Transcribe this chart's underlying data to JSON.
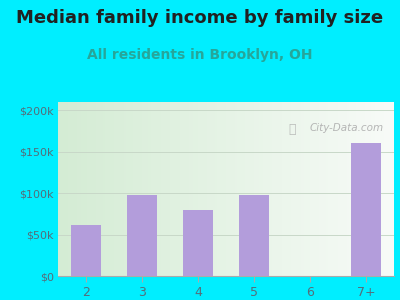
{
  "title": "Median family income by family size",
  "subtitle": "All residents in Brooklyn, OH",
  "categories": [
    "2",
    "3",
    "4",
    "5",
    "6",
    "7+"
  ],
  "values": [
    62000,
    98000,
    80000,
    98000,
    0,
    160000
  ],
  "bar_color": "#b39ddb",
  "background_outer": "#00eeff",
  "title_fontsize": 13,
  "subtitle_fontsize": 10,
  "subtitle_color": "#26a69a",
  "title_color": "#212121",
  "tick_color": "#546e7a",
  "yticks": [
    0,
    50000,
    100000,
    150000,
    200000
  ],
  "ytick_labels": [
    "$0",
    "$50k",
    "$100k",
    "$150k",
    "$200k"
  ],
  "ylim": [
    0,
    210000
  ],
  "watermark": "City-Data.com",
  "grid_color": "#c8d8c8",
  "plot_bg_left": "#d4ecd4",
  "plot_bg_right": "#f8fbf8"
}
